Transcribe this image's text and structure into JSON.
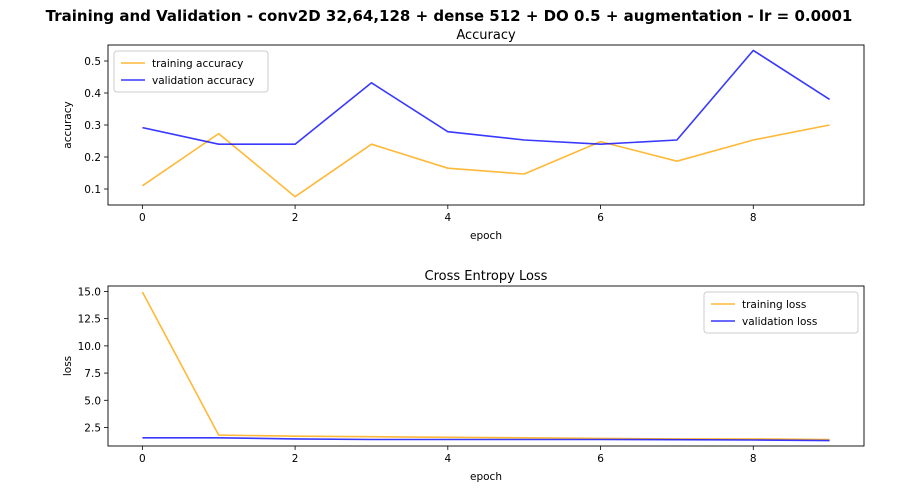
{
  "figure": {
    "suptitle": "Training and Validation - conv2D 32,64,128 + dense 512  + DO 0.5 + augmentation - lr = 0.0001"
  },
  "colors": {
    "training": "#ffa500",
    "validation": "#0000ff"
  },
  "chart_data": [
    {
      "type": "line",
      "title": "Accuracy",
      "xlabel": "epoch",
      "ylabel": "accuracy",
      "x": [
        0,
        1,
        2,
        3,
        4,
        5,
        6,
        7,
        8,
        9
      ],
      "xticks": [
        0,
        2,
        4,
        6,
        8
      ],
      "yticks": [
        0.1,
        0.2,
        0.3,
        0.4,
        0.5
      ],
      "ytick_labels": [
        "0.1",
        "0.2",
        "0.3",
        "0.4",
        "0.5"
      ],
      "ylim": [
        0.05,
        0.55
      ],
      "xlim": [
        -0.45,
        9.45
      ],
      "legend_position": "upper-left",
      "series": [
        {
          "name": "training accuracy",
          "color": "#ffa500",
          "values": [
            0.11,
            0.273,
            0.076,
            0.24,
            0.165,
            0.147,
            0.248,
            0.187,
            0.253,
            0.3
          ]
        },
        {
          "name": "validation accuracy",
          "color": "#0000ff",
          "values": [
            0.292,
            0.24,
            0.24,
            0.432,
            0.279,
            0.253,
            0.24,
            0.253,
            0.533,
            0.38
          ]
        }
      ]
    },
    {
      "type": "line",
      "title": "Cross Entropy Loss",
      "xlabel": "epoch",
      "ylabel": "loss",
      "x": [
        0,
        1,
        2,
        3,
        4,
        5,
        6,
        7,
        8,
        9
      ],
      "xticks": [
        0,
        2,
        4,
        6,
        8
      ],
      "yticks": [
        2.5,
        5.0,
        7.5,
        10.0,
        12.5,
        15.0
      ],
      "ytick_labels": [
        "2.5",
        "5.0",
        "7.5",
        "10.0",
        "12.5",
        "15.0"
      ],
      "ylim": [
        0.8,
        15.5
      ],
      "xlim": [
        -0.45,
        9.45
      ],
      "legend_position": "upper-right",
      "series": [
        {
          "name": "training loss",
          "color": "#ffa500",
          "values": [
            14.95,
            1.8,
            1.7,
            1.65,
            1.6,
            1.55,
            1.5,
            1.45,
            1.45,
            1.4
          ]
        },
        {
          "name": "validation loss",
          "color": "#0000ff",
          "values": [
            1.55,
            1.55,
            1.45,
            1.4,
            1.4,
            1.4,
            1.4,
            1.38,
            1.35,
            1.3
          ]
        }
      ]
    }
  ]
}
